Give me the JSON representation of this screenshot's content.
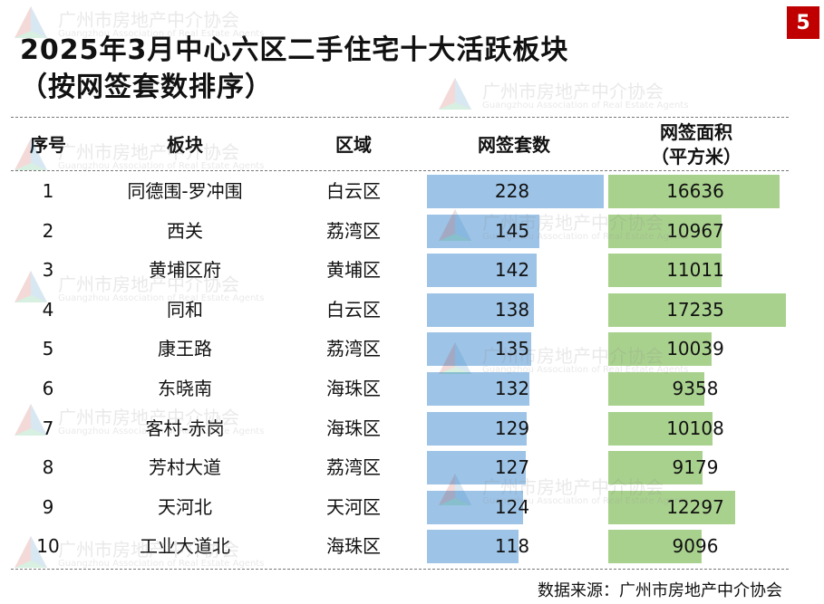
{
  "title_line1": "2025年3月中心六区二手住宅十大活跃板块",
  "title_line2": "（按网签套数排序）",
  "page_number": "5",
  "source": "数据来源：广州市房地产中介协会",
  "watermark": {
    "cn": "广州市房地产中介协会",
    "en": "Guangzhou Association of Real Estate Agents"
  },
  "headers": {
    "rank": "序号",
    "block": "板块",
    "district": "区域",
    "units": "网签套数",
    "area_line1": "网签面积",
    "area_line2": "（平方米）"
  },
  "colors": {
    "units_bar": "#9dc3e6",
    "area_bar": "#a9d18e",
    "badge": "#c00000"
  },
  "chart_data": {
    "type": "table",
    "columns": [
      "序号",
      "板块",
      "区域",
      "网签套数",
      "网签面积（平方米）"
    ],
    "rows": [
      {
        "rank": "1",
        "block": "同德围-罗冲围",
        "district": "白云区",
        "units": 228,
        "area": 16636
      },
      {
        "rank": "2",
        "block": "西关",
        "district": "荔湾区",
        "units": 145,
        "area": 10967
      },
      {
        "rank": "3",
        "block": "黄埔区府",
        "district": "黄埔区",
        "units": 142,
        "area": 11011
      },
      {
        "rank": "4",
        "block": "同和",
        "district": "白云区",
        "units": 138,
        "area": 17235
      },
      {
        "rank": "5",
        "block": "康王路",
        "district": "荔湾区",
        "units": 135,
        "area": 10039
      },
      {
        "rank": "6",
        "block": "东晓南",
        "district": "海珠区",
        "units": 132,
        "area": 9358
      },
      {
        "rank": "7",
        "block": "客村-赤岗",
        "district": "海珠区",
        "units": 129,
        "area": 10108
      },
      {
        "rank": "8",
        "block": "芳村大道",
        "district": "荔湾区",
        "units": 127,
        "area": 9179
      },
      {
        "rank": "9",
        "block": "天河北",
        "district": "天河区",
        "units": 124,
        "area": 12297
      },
      {
        "rank": "10",
        "block": "工业大道北",
        "district": "海珠区",
        "units": 118,
        "area": 9096
      }
    ]
  }
}
